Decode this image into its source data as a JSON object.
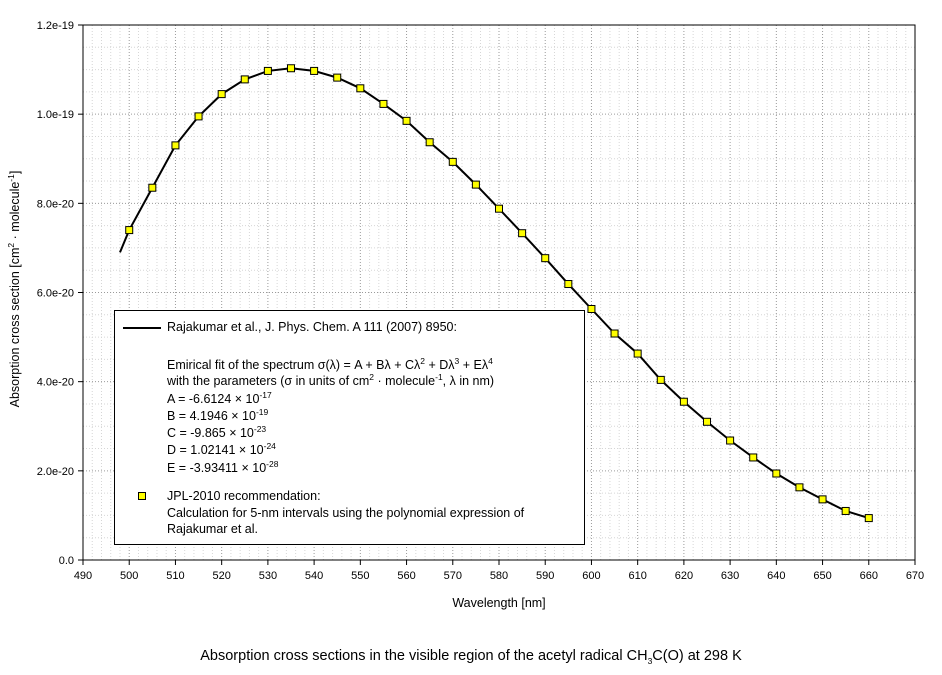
{
  "chart_data": {
    "type": "line",
    "xlabel": "Wavelength [nm]",
    "ylabel_main": "Absorption cross section [cm",
    "ylabel_mid": " · molecule",
    "ylabel_end": "]",
    "ylabel_exp1": "2",
    "ylabel_exp2": "-1",
    "xlim": [
      490,
      670
    ],
    "ylim": [
      0,
      1.2e-19
    ],
    "grid": true,
    "x_ticks": [
      490,
      500,
      510,
      520,
      530,
      540,
      550,
      560,
      570,
      580,
      590,
      600,
      610,
      620,
      630,
      640,
      650,
      660,
      670
    ],
    "y_ticks": [
      0,
      2e-20,
      4e-20,
      6e-20,
      8e-20,
      1e-19,
      1.2e-19
    ],
    "y_tick_labels": [
      "0.0",
      "2.0e-20",
      "4.0e-20",
      "6.0e-20",
      "8.0e-20",
      "1.0e-19",
      "1.2e-19"
    ],
    "series": [
      {
        "name": "Rajakumar et al., J. Phys. Chem. A 111 (2007) 8950:",
        "style": "line",
        "color": "#000000",
        "x_range": [
          498,
          660
        ],
        "coefficients": {
          "A": -6.6124e-17,
          "B": 4.1946e-19,
          "C": -9.865e-23,
          "D": 1.02141e-24,
          "E": -3.93411e-28
        },
        "x": [
          498,
          500,
          505,
          510,
          515,
          520,
          525,
          530,
          535,
          540,
          545,
          550,
          555,
          560,
          565,
          570,
          575,
          580,
          585,
          590,
          595,
          600,
          605,
          610,
          615,
          620,
          625,
          630,
          635,
          640,
          645,
          650,
          655,
          660
        ],
        "y": [
          6.9e-20,
          7.4e-20,
          8.35e-20,
          9.3e-20,
          9.95e-20,
          1.045e-19,
          1.078e-19,
          1.097e-19,
          1.103e-19,
          1.097e-19,
          1.082e-19,
          1.058e-19,
          1.023e-19,
          9.85e-20,
          9.37e-20,
          8.93e-20,
          8.42e-20,
          7.88e-20,
          7.33e-20,
          6.77e-20,
          6.19e-20,
          5.63e-20,
          5.08e-20,
          4.63e-20,
          4.04e-20,
          3.55e-20,
          3.1e-20,
          2.68e-20,
          2.3e-20,
          1.94e-20,
          1.63e-20,
          1.36e-20,
          1.1e-20,
          9.4e-21
        ]
      },
      {
        "name": "JPL-2010 recommendation:",
        "style": "markers",
        "marker_color": "#ffff00",
        "x": [
          500,
          505,
          510,
          515,
          520,
          525,
          530,
          535,
          540,
          545,
          550,
          555,
          560,
          565,
          570,
          575,
          580,
          585,
          590,
          595,
          600,
          605,
          610,
          615,
          620,
          625,
          630,
          635,
          640,
          645,
          650,
          655,
          660
        ],
        "y": [
          7.4e-20,
          8.35e-20,
          9.3e-20,
          9.95e-20,
          1.045e-19,
          1.078e-19,
          1.097e-19,
          1.103e-19,
          1.097e-19,
          1.082e-19,
          1.058e-19,
          1.023e-19,
          9.85e-20,
          9.37e-20,
          8.93e-20,
          8.42e-20,
          7.88e-20,
          7.33e-20,
          6.77e-20,
          6.19e-20,
          5.63e-20,
          5.08e-20,
          4.63e-20,
          4.04e-20,
          3.55e-20,
          3.1e-20,
          2.68e-20,
          2.3e-20,
          1.94e-20,
          1.63e-20,
          1.36e-20,
          1.1e-20,
          9.4e-21
        ]
      }
    ]
  },
  "legend": {
    "line_label": "Rajakumar et al., J. Phys. Chem. A 111 (2007) 8950:",
    "fit_prefix": "Emirical fit of the spectrum σ(λ) = A + Bλ + Cλ",
    "fit_p2": "2",
    "fit_plus_d": " + Dλ",
    "fit_p3": "3",
    "fit_plus_e": " + Eλ",
    "fit_p4": "4",
    "params_prefix": "with the parameters (σ in units of cm",
    "params_p2": "2",
    "params_mid": " · molecule",
    "params_pm1": "-1",
    "params_suffix": ", λ in nm)",
    "a_label": "A = -6.6124 × 10",
    "a_exp": "-17",
    "b_label": "B =  4.1946 × 10",
    "b_exp": "-19",
    "c_label": "C = -9.865 × 10",
    "c_exp": "-23",
    "d_label": "D =  1.02141 × 10",
    "d_exp": "-24",
    "e_label": "E = -3.93411 × 10",
    "e_exp": "-28",
    "marker_label": "JPL-2010 recommendation:",
    "marker_desc1": "Calculation for 5-nm intervals using the polynomial expression of",
    "marker_desc2": "Rajakumar et al."
  },
  "caption": {
    "prefix": "Absorption cross sections in the visible region of the acetyl radical CH",
    "sub": "3",
    "suffix": "C(O) at 298 K"
  }
}
